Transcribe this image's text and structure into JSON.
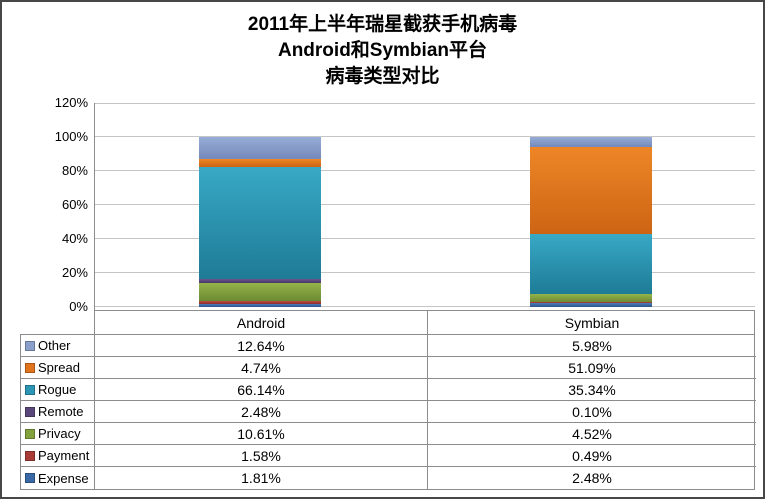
{
  "title": {
    "lines": [
      "2011年上半年瑞星截获手机病毒",
      "Android和Symbian平台",
      "病毒类型对比"
    ]
  },
  "chart_data": {
    "type": "bar",
    "stacked": true,
    "title": "2011年上半年瑞星截获手机病毒 Android和Symbian平台 病毒类型对比",
    "categories": [
      "Android",
      "Symbian"
    ],
    "series": [
      {
        "name": "Expense",
        "values": [
          1.81,
          2.48
        ],
        "color": "#3a68a6",
        "color_top": "#4a7cbe",
        "color_bottom": "#2c5488"
      },
      {
        "name": "Payment",
        "values": [
          1.58,
          0.49
        ],
        "color": "#a83b35",
        "color_top": "#bc4b42",
        "color_bottom": "#8c2f2a"
      },
      {
        "name": "Privacy",
        "values": [
          10.61,
          4.52
        ],
        "color": "#83a23d",
        "color_top": "#95b44b",
        "color_bottom": "#6c8a32"
      },
      {
        "name": "Remote",
        "values": [
          2.48,
          0.1
        ],
        "color": "#5a477a",
        "color_top": "#6a5590",
        "color_bottom": "#473862"
      },
      {
        "name": "Rogue",
        "values": [
          66.14,
          35.34
        ],
        "color": "#2b97b4",
        "color_top": "#38a9c6",
        "color_bottom": "#1e7b96"
      },
      {
        "name": "Spread",
        "values": [
          4.74,
          51.09
        ],
        "color": "#e0751e",
        "color_top": "#ee8627",
        "color_bottom": "#cc6414"
      },
      {
        "name": "Other",
        "values": [
          12.64,
          5.98
        ],
        "color": "#8aa0cb",
        "color_top": "#97acd6",
        "color_bottom": "#7389ba"
      }
    ],
    "xlabel": "",
    "ylabel": "",
    "ylim": [
      0,
      120
    ],
    "y_ticks": [
      "0%",
      "20%",
      "40%",
      "60%",
      "80%",
      "100%",
      "120%"
    ],
    "grid": true,
    "legend_position": "table-left-column"
  },
  "table": {
    "headers": [
      "Android",
      "Symbian"
    ],
    "rows": [
      {
        "label": "Other",
        "values": [
          "12.64%",
          "5.98%"
        ]
      },
      {
        "label": "Spread",
        "values": [
          "4.74%",
          "51.09%"
        ]
      },
      {
        "label": "Rogue",
        "values": [
          "66.14%",
          "35.34%"
        ]
      },
      {
        "label": "Remote",
        "values": [
          "2.48%",
          "0.10%"
        ]
      },
      {
        "label": "Privacy",
        "values": [
          "10.61%",
          "4.52%"
        ]
      },
      {
        "label": "Payment",
        "values": [
          "1.58%",
          "0.49%"
        ]
      },
      {
        "label": "Expense",
        "values": [
          "1.81%",
          "2.48%"
        ]
      }
    ]
  }
}
